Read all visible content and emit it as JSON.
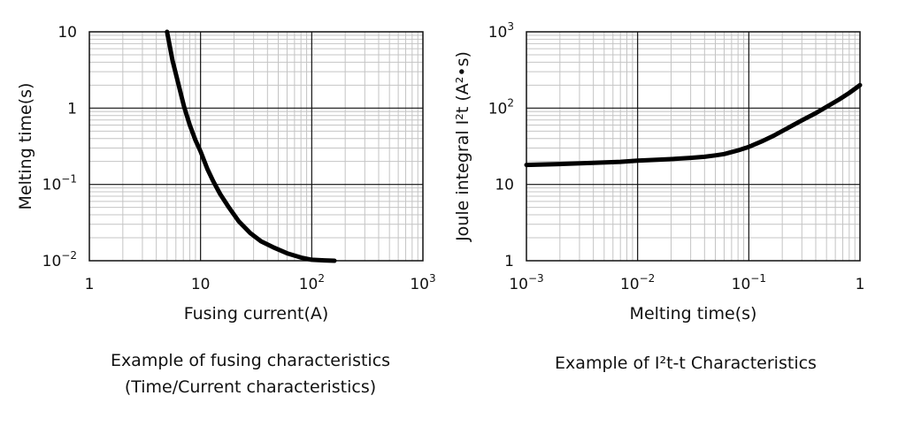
{
  "chart_data": [
    {
      "type": "line",
      "xscale": "log",
      "yscale": "log",
      "xlim": [
        1,
        1000
      ],
      "ylim": [
        0.01,
        10
      ],
      "grid": true,
      "xlabel": "Fusing current(A)",
      "ylabel": "Melting time(s)",
      "x_tick_labels": [
        "1",
        "10",
        "10^2",
        "10^3"
      ],
      "y_tick_labels": [
        "10^-2",
        "10^-1",
        "1",
        "10"
      ],
      "caption": [
        "Example of fusing characteristics",
        "(Time/Current characteristics)"
      ],
      "series": [
        {
          "x": [
            5.0,
            5.6,
            6.3,
            7.1,
            8.0,
            9.0,
            10.0,
            11.5,
            13.0,
            15.0,
            18.0,
            22.0,
            28.0,
            35.0,
            45.0,
            60.0,
            80.0,
            100.0,
            130.0,
            160.0
          ],
          "y": [
            10.0,
            4.2,
            2.1,
            1.05,
            0.6,
            0.38,
            0.27,
            0.16,
            0.11,
            0.075,
            0.05,
            0.033,
            0.023,
            0.018,
            0.015,
            0.0125,
            0.011,
            0.0103,
            0.0101,
            0.01
          ]
        }
      ]
    },
    {
      "type": "line",
      "xscale": "log",
      "yscale": "log",
      "xlim": [
        0.001,
        1
      ],
      "ylim": [
        1,
        1000
      ],
      "grid": true,
      "xlabel": "Melting time(s)",
      "ylabel": "Joule integral I²t (A²•s)",
      "x_tick_labels": [
        "10^-3",
        "10^-2",
        "10^-1",
        "1"
      ],
      "y_tick_labels": [
        "1",
        "10",
        "10^2",
        "10^3"
      ],
      "caption": [
        "Example of I²t-t Characteristics"
      ],
      "series": [
        {
          "x": [
            0.001,
            0.002,
            0.004,
            0.007,
            0.01,
            0.015,
            0.02,
            0.03,
            0.04,
            0.05,
            0.06,
            0.07,
            0.08,
            0.1,
            0.13,
            0.17,
            0.22,
            0.3,
            0.4,
            0.5,
            0.65,
            0.8,
            1.0
          ],
          "y": [
            18.0,
            18.5,
            19.2,
            19.8,
            20.5,
            21.0,
            21.5,
            22.3,
            23.0,
            24.0,
            25.0,
            26.5,
            28.0,
            31.0,
            36.5,
            44.0,
            54.0,
            69.0,
            86.0,
            104.0,
            130.0,
            158.0,
            200.0
          ]
        }
      ]
    }
  ]
}
